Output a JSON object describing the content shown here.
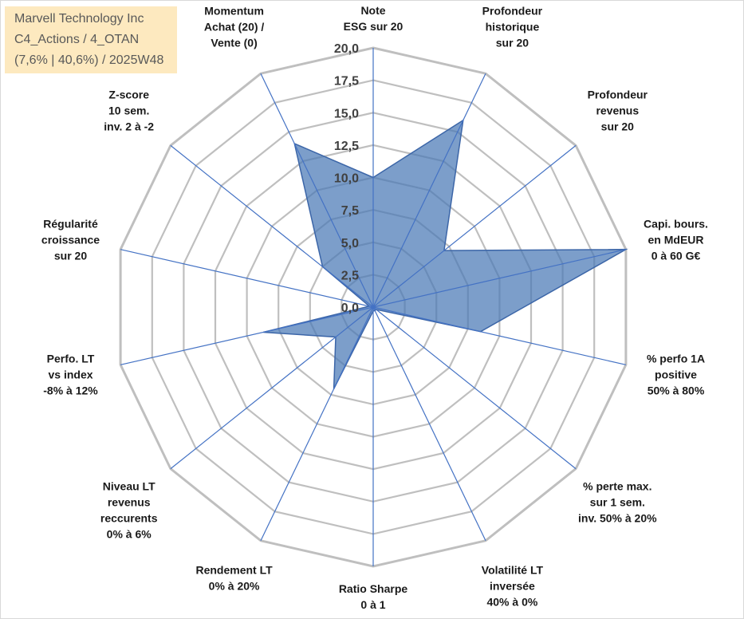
{
  "title_box": {
    "line1": "Marvell Technology Inc",
    "line2": "C4_Actions / 4_OTAN",
    "line3": "(7,6% | 40,6%) / 2025W48"
  },
  "chart_data": {
    "type": "radar",
    "title": "Marvell Technology Inc",
    "rmin": 0,
    "rmax": 20,
    "step": 2.5,
    "tick_labels": [
      "0,0",
      "2,5",
      "5,0",
      "7,5",
      "10,0",
      "12,5",
      "15,0",
      "17,5",
      "20,0"
    ],
    "categories": [
      {
        "id": "esg",
        "lines": [
          "Note",
          "ESG sur 20"
        ]
      },
      {
        "id": "prof-hist",
        "lines": [
          "Profondeur",
          "historique",
          "sur 20"
        ]
      },
      {
        "id": "prof-rev",
        "lines": [
          "Profondeur",
          "revenus",
          "sur 20"
        ]
      },
      {
        "id": "capi",
        "lines": [
          "Capi. bours.",
          "en MdEUR",
          "0 à 60 G€"
        ]
      },
      {
        "id": "perfo-1a",
        "lines": [
          "% perfo 1A",
          "positive",
          "50% à 80%"
        ]
      },
      {
        "id": "perte-max",
        "lines": [
          "% perte max.",
          "sur 1 sem.",
          "inv. 50% à 20%"
        ]
      },
      {
        "id": "volatilite",
        "lines": [
          "Volatilité LT",
          "inversée",
          "40% à 0%"
        ]
      },
      {
        "id": "sharpe",
        "lines": [
          "Ratio Sharpe",
          "0 à 1"
        ]
      },
      {
        "id": "rendement",
        "lines": [
          "Rendement LT",
          "0% à 20%"
        ]
      },
      {
        "id": "niveau-rev",
        "lines": [
          "Niveau LT",
          "revenus",
          "reccurents",
          "0% à 6%"
        ]
      },
      {
        "id": "perfo-lt",
        "lines": [
          "Perfo. LT",
          "vs index",
          "-8% à 12%"
        ]
      },
      {
        "id": "regularite",
        "lines": [
          "Régularité",
          "croissance",
          "sur 20"
        ]
      },
      {
        "id": "zscore",
        "lines": [
          "Z-score",
          "10 sem.",
          "inv. 2 à -2"
        ]
      },
      {
        "id": "momentum",
        "lines": [
          "Momentum",
          "Achat (20) /",
          "Vente (0)"
        ]
      }
    ],
    "series": [
      {
        "values": [
          10.0,
          16.0,
          7.0,
          20.0,
          8.5,
          0.3,
          0.3,
          0.3,
          7.0,
          3.7,
          8.7,
          0.3,
          5.0,
          14.0
        ],
        "color": "#4a78b5",
        "fill_opacity": 0.72
      }
    ],
    "grid_color": "#bfbfbf",
    "spoke_color": "#4472c4",
    "grid": true,
    "legend": "none"
  }
}
